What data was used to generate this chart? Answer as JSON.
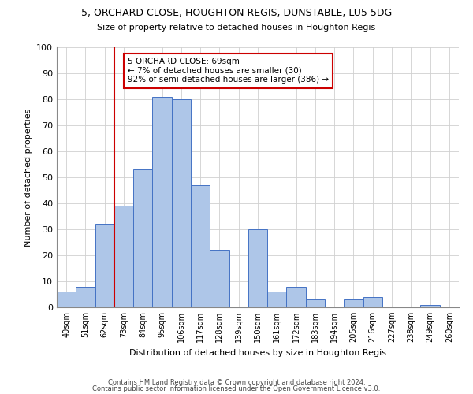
{
  "title1": "5, ORCHARD CLOSE, HOUGHTON REGIS, DUNSTABLE, LU5 5DG",
  "title2": "Size of property relative to detached houses in Houghton Regis",
  "xlabel": "Distribution of detached houses by size in Houghton Regis",
  "ylabel": "Number of detached properties",
  "bin_labels": [
    "40sqm",
    "51sqm",
    "62sqm",
    "73sqm",
    "84sqm",
    "95sqm",
    "106sqm",
    "117sqm",
    "128sqm",
    "139sqm",
    "150sqm",
    "161sqm",
    "172sqm",
    "183sqm",
    "194sqm",
    "205sqm",
    "216sqm",
    "227sqm",
    "238sqm",
    "249sqm",
    "260sqm"
  ],
  "bar_values": [
    6,
    8,
    32,
    39,
    53,
    81,
    80,
    47,
    22,
    0,
    30,
    6,
    8,
    3,
    0,
    3,
    4,
    0,
    0,
    1,
    0
  ],
  "bar_color": "#aec6e8",
  "bar_edge_color": "#4472c4",
  "vline_x_index": 2,
  "vline_color": "#cc0000",
  "annotation_text": "5 ORCHARD CLOSE: 69sqm\n← 7% of detached houses are smaller (30)\n92% of semi-detached houses are larger (386) →",
  "annotation_box_color": "#ffffff",
  "annotation_box_edge": "#cc0000",
  "ylim": [
    0,
    100
  ],
  "yticks": [
    0,
    10,
    20,
    30,
    40,
    50,
    60,
    70,
    80,
    90,
    100
  ],
  "footer1": "Contains HM Land Registry data © Crown copyright and database right 2024.",
  "footer2": "Contains public sector information licensed under the Open Government Licence v3.0.",
  "bg_color": "#ffffff",
  "grid_color": "#d0d0d0"
}
